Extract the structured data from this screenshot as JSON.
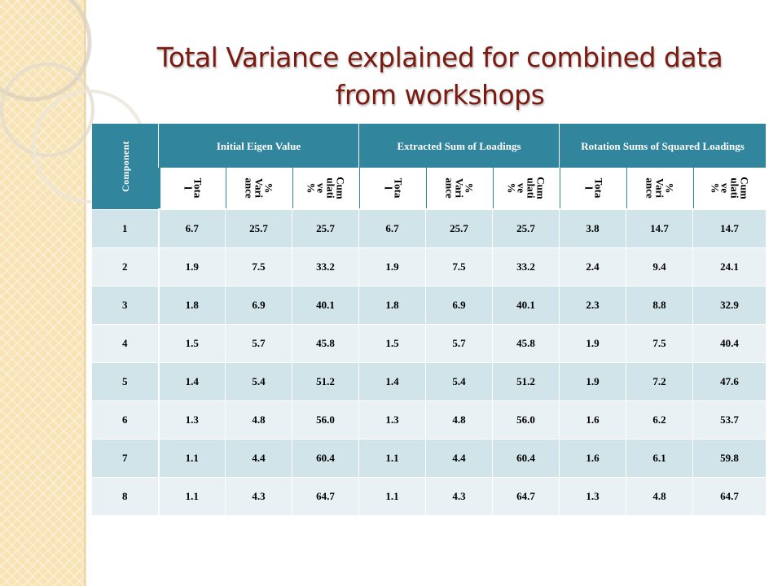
{
  "title": {
    "line1": "Total Variance explained for combined data",
    "line2": "from workshops"
  },
  "table": {
    "component_header": "Component",
    "group_headers": [
      "Initial Eigen Value",
      "Extracted Sum of Loadings",
      "Rotation Sums of Squared Loadings"
    ],
    "sub_headers": [
      "Tota\nl",
      "%\nVari\nance",
      "Cum\nulati\nve\n%",
      "Tota\nl",
      "%\nVari\nance",
      "Cum\nulati\nve\n%",
      "Tota\nl",
      "%\nVari\nance",
      "Cum\nulati\nve\n%"
    ],
    "rows": [
      [
        "1",
        "6.7",
        "25.7",
        "25.7",
        "6.7",
        "25.7",
        "25.7",
        "3.8",
        "14.7",
        "14.7"
      ],
      [
        "2",
        "1.9",
        "7.5",
        "33.2",
        "1.9",
        "7.5",
        "33.2",
        "2.4",
        "9.4",
        "24.1"
      ],
      [
        "3",
        "1.8",
        "6.9",
        "40.1",
        "1.8",
        "6.9",
        "40.1",
        "2.3",
        "8.8",
        "32.9"
      ],
      [
        "4",
        "1.5",
        "5.7",
        "45.8",
        "1.5",
        "5.7",
        "45.8",
        "1.9",
        "7.5",
        "40.4"
      ],
      [
        "5",
        "1.4",
        "5.4",
        "51.2",
        "1.4",
        "5.4",
        "51.2",
        "1.9",
        "7.2",
        "47.6"
      ],
      [
        "6",
        "1.3",
        "4.8",
        "56.0",
        "1.3",
        "4.8",
        "56.0",
        "1.6",
        "6.2",
        "53.7"
      ],
      [
        "7",
        "1.1",
        "4.4",
        "60.4",
        "1.1",
        "4.4",
        "60.4",
        "1.6",
        "6.1",
        "59.8"
      ],
      [
        "8",
        "1.1",
        "4.3",
        "64.7",
        "1.1",
        "4.3",
        "64.7",
        "1.3",
        "4.8",
        "64.7"
      ]
    ]
  },
  "colors": {
    "header_teal": "#31859c",
    "row_dark": "#d0e4ea",
    "row_light": "#e9f1f4",
    "title_red": "#7a1a10",
    "side_strip": "#f7e3b3"
  }
}
